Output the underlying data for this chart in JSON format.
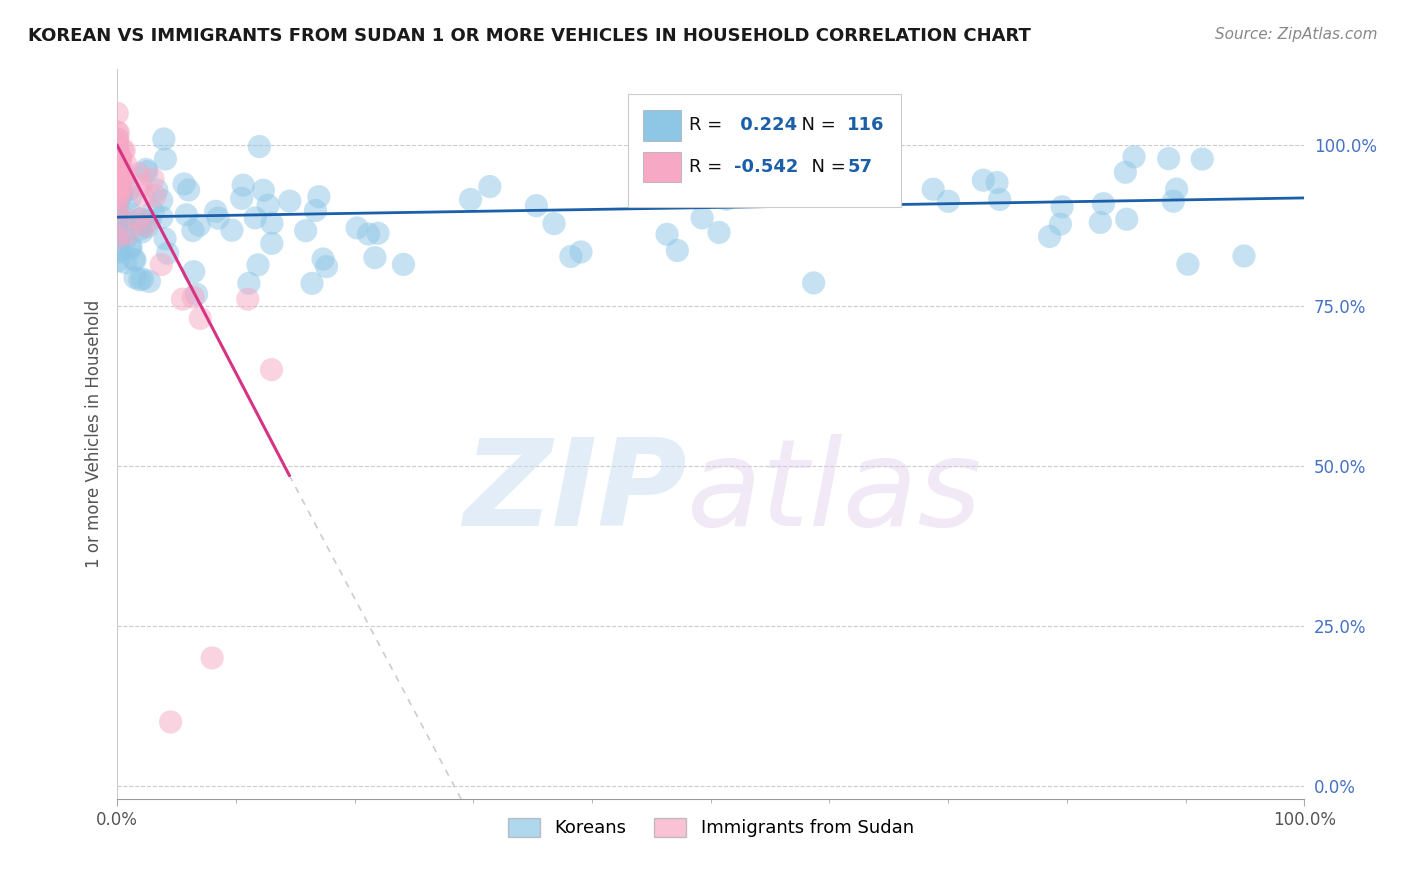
{
  "title": "KOREAN VS IMMIGRANTS FROM SUDAN 1 OR MORE VEHICLES IN HOUSEHOLD CORRELATION CHART",
  "source": "Source: ZipAtlas.com",
  "ylabel": "1 or more Vehicles in Household",
  "r_korean": 0.224,
  "n_korean": 116,
  "r_sudan": -0.542,
  "n_sudan": 57,
  "korean_color": "#8ec6e6",
  "sudan_color": "#f7a8c4",
  "korean_line_color": "#1a5fa8",
  "sudan_line_color": "#d63384",
  "background_color": "#ffffff",
  "title_fontsize": 13,
  "source_fontsize": 11,
  "ytick_labels": [
    "100.0%",
    "75.0%",
    "50.0%",
    "25.0%",
    "0.0%"
  ],
  "ytick_values": [
    1.0,
    0.75,
    0.5,
    0.25,
    0.0
  ],
  "xlim": [
    0.0,
    1.0
  ],
  "ylim": [
    -0.02,
    1.12
  ]
}
